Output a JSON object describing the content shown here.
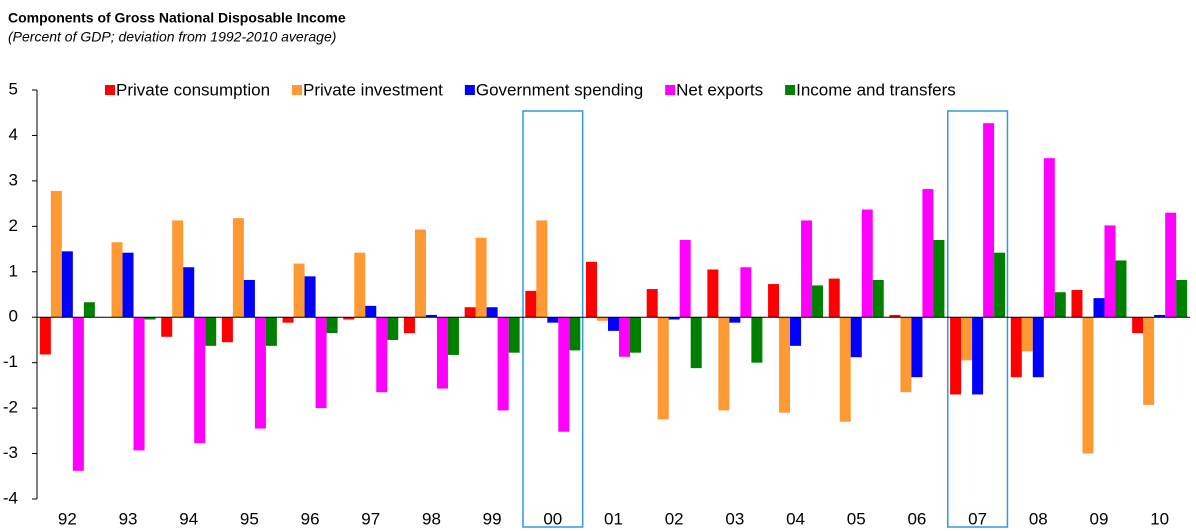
{
  "chart_data": {
    "type": "bar",
    "title": "Components of Gross National Disposable Income",
    "subtitle": "(Percent of GDP; deviation from 1992-2010 average)",
    "categories": [
      "92",
      "93",
      "94",
      "95",
      "96",
      "97",
      "98",
      "99",
      "00",
      "01",
      "02",
      "03",
      "04",
      "05",
      "06",
      "07",
      "08",
      "09",
      "10"
    ],
    "series": [
      {
        "name": "Private consumption",
        "color": "#ff0000",
        "values": [
          -0.82,
          0,
          -0.43,
          -0.55,
          -0.12,
          -0.05,
          -0.35,
          0.22,
          0.58,
          1.22,
          0.62,
          1.05,
          0.73,
          0.85,
          0.05,
          -1.7,
          -1.32,
          0.6,
          -0.35
        ]
      },
      {
        "name": "Private investment",
        "color": "#ff9933",
        "values": [
          2.78,
          1.65,
          2.13,
          2.18,
          1.18,
          1.42,
          1.93,
          1.75,
          2.13,
          -0.08,
          -2.25,
          -2.05,
          -2.1,
          -2.3,
          -1.65,
          -0.95,
          -0.75,
          -3.0,
          -1.93
        ]
      },
      {
        "name": "Government spending",
        "color": "#0000ff",
        "values": [
          1.45,
          1.42,
          1.1,
          0.82,
          0.9,
          0.25,
          0.05,
          0.22,
          -0.12,
          -0.3,
          -0.05,
          -0.12,
          -0.63,
          -0.88,
          -1.32,
          -1.7,
          -1.32,
          0.42,
          0.05
        ]
      },
      {
        "name": "Net exports",
        "color": "#ff00ff",
        "values": [
          -3.38,
          -2.93,
          -2.77,
          -2.45,
          -2.0,
          -1.65,
          -1.57,
          -2.05,
          -2.52,
          -0.87,
          1.7,
          1.1,
          2.13,
          2.37,
          2.82,
          4.27,
          3.5,
          2.02,
          2.3
        ]
      },
      {
        "name": "Income and transfers",
        "color": "#008000",
        "values": [
          0.33,
          -0.05,
          -0.63,
          -0.63,
          -0.35,
          -0.5,
          -0.83,
          -0.78,
          -0.73,
          -0.78,
          -1.12,
          -1.0,
          0.7,
          0.82,
          1.7,
          1.42,
          0.55,
          1.25,
          0.82
        ]
      }
    ],
    "ylim": [
      -4,
      5
    ],
    "yticks": [
      -4,
      -3,
      -2,
      -1,
      0,
      1,
      2,
      3,
      4,
      5
    ],
    "highlight": [
      8,
      15
    ],
    "highlight_color": "#3399dd"
  }
}
